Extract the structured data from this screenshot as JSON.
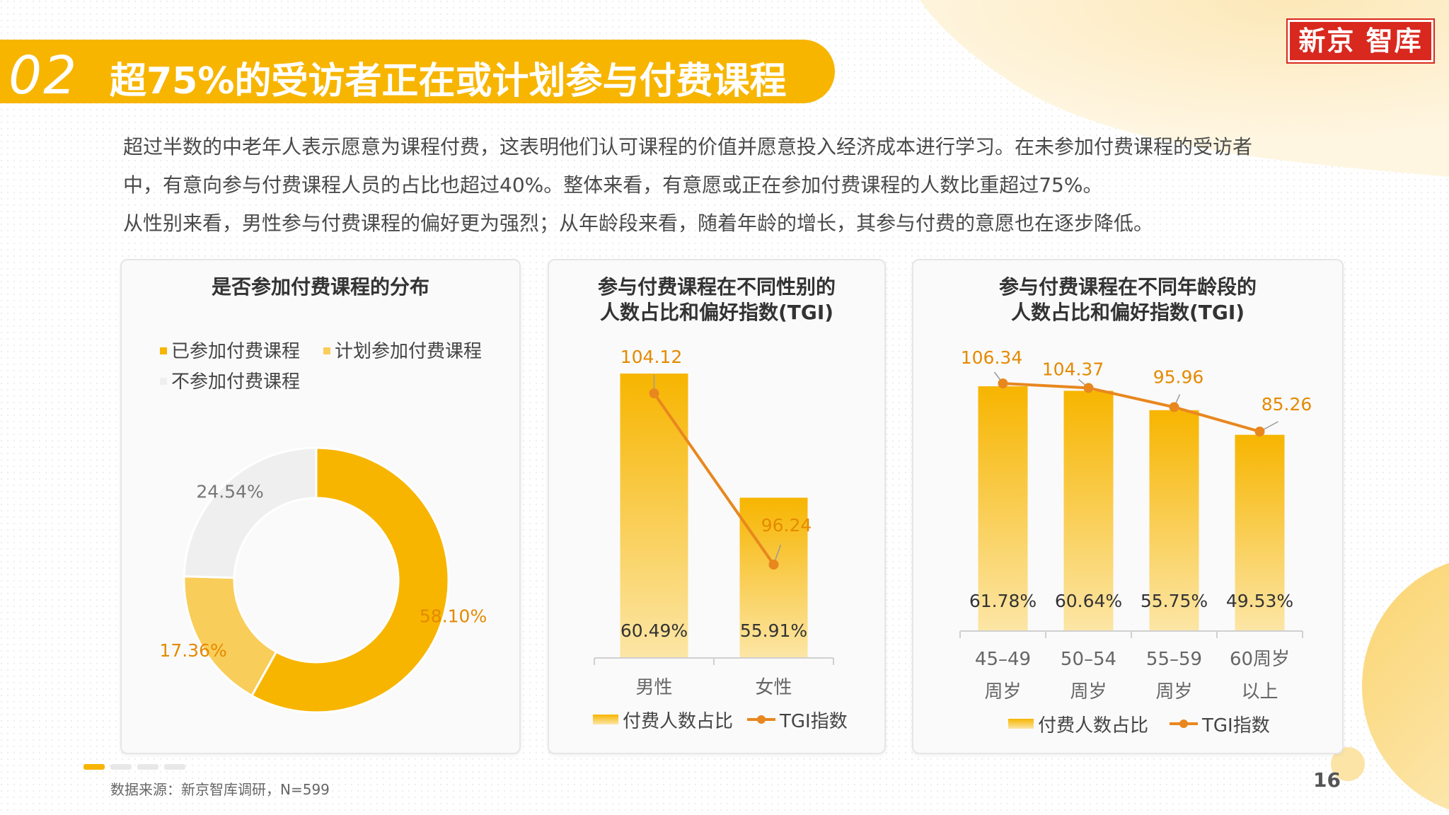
{
  "header": {
    "number": "02",
    "title": "超75%的受访者正在或计划参与付费课程",
    "logo_text": "新京 智库"
  },
  "intro": {
    "line1": "超过半数的中老年人表示愿意为课程付费，这表明他们认可课程的价值并愿意投入经济成本进行学习。在未参加付费课程的受访者",
    "line2": "中，有意向参与付费课程人员的占比也超过40%。整体来看，有意愿或正在参加付费课程的人数比重超过75%。",
    "line3": "从性别来看，男性参与付费课程的偏好更为强烈；从年龄段来看，随着年龄的增长，其参与付费的意愿也在逐步降低。"
  },
  "colors": {
    "primary": "#F7B500",
    "light": "#F9CD5A",
    "grey": "#EFEFEF",
    "line": "#E8871E",
    "label": "#E48A00",
    "brand_red": "#D9281E"
  },
  "footer": {
    "source": "数据来源：新京智库调研，N=599",
    "page": "16"
  },
  "chart_data": [
    {
      "type": "pie",
      "title": "是否参加付费课程的分布",
      "legend": [
        "已参加付费课程",
        "计划参加付费课程",
        "不参加付费课程"
      ],
      "categories": [
        "已参加付费课程",
        "计划参加付费课程",
        "不参加付费课程"
      ],
      "values": [
        58.1,
        17.36,
        24.54
      ],
      "labels": [
        "58.10%",
        "17.36%",
        "24.54%"
      ],
      "donut": true,
      "legend_position": "top-left"
    },
    {
      "type": "bar",
      "title_line1": "参与付费课程在不同性别的",
      "title_line2": "人数占比和偏好指数(TGI)",
      "categories": [
        "男性",
        "女性"
      ],
      "series": [
        {
          "name": "付费人数占比",
          "type": "bar",
          "values": [
            60.49,
            55.91
          ],
          "labels": [
            "60.49%",
            "55.91%"
          ]
        },
        {
          "name": "TGI指数",
          "type": "line",
          "values": [
            104.12,
            96.24
          ],
          "labels": [
            "104.12",
            "96.24"
          ]
        }
      ],
      "legend_position": "bottom"
    },
    {
      "type": "bar",
      "title_line1": "参与付费课程在不同年龄段的",
      "title_line2": "人数占比和偏好指数(TGI)",
      "categories": [
        [
          "45–49",
          "周岁"
        ],
        [
          "50–54",
          "周岁"
        ],
        [
          "55–59",
          "周岁"
        ],
        [
          "60周岁",
          "以上"
        ]
      ],
      "series": [
        {
          "name": "付费人数占比",
          "type": "bar",
          "values": [
            61.78,
            60.64,
            55.75,
            49.53
          ],
          "labels": [
            "61.78%",
            "60.64%",
            "55.75%",
            "49.53%"
          ]
        },
        {
          "name": "TGI指数",
          "type": "line",
          "values": [
            106.34,
            104.37,
            95.96,
            85.26
          ],
          "labels": [
            "106.34",
            "104.37",
            "95.96",
            "85.26"
          ]
        }
      ],
      "legend_position": "bottom"
    }
  ]
}
